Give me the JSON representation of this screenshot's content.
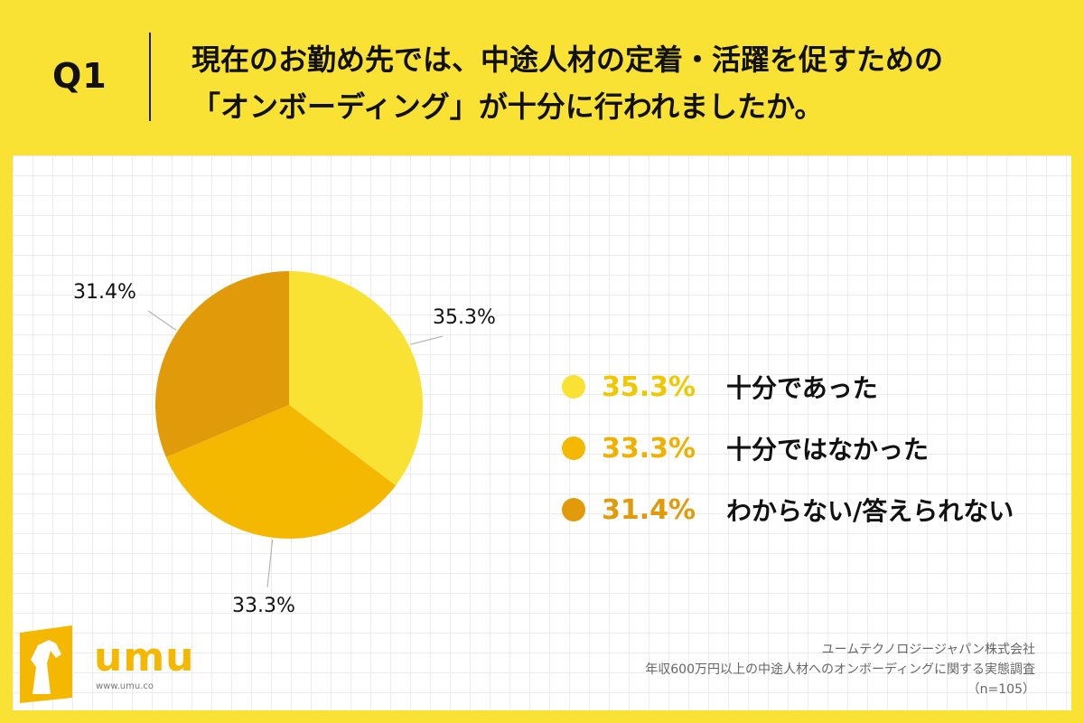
{
  "header": {
    "question_id": "Q1",
    "question_line1": "現在のお勤め先では、中途人材の定着・活躍を促すための",
    "question_line2": "「オンボーディング」が十分に行われましたか。"
  },
  "chart_data": {
    "type": "pie",
    "categories": [
      "十分であった",
      "十分ではなかった",
      "わからない/答えられない"
    ],
    "values": [
      35.3,
      33.3,
      31.4
    ],
    "value_labels": [
      "35.3%",
      "33.3%",
      "31.4%"
    ],
    "colors": [
      "#f9e234",
      "#f5b800",
      "#e19b0a"
    ],
    "start_angle_deg": 0,
    "direction": "clockwise",
    "legend_placement": "right"
  },
  "legend": {
    "items": [
      {
        "pct": "35.3%",
        "label": "十分であった",
        "color": "#f9e234",
        "text_color": "#f0c800"
      },
      {
        "pct": "33.3%",
        "label": "十分ではなかった",
        "color": "#f5b800",
        "text_color": "#f0b000"
      },
      {
        "pct": "31.4%",
        "label": "わからない/答えられない",
        "color": "#e19b0a",
        "text_color": "#e19b0a"
      }
    ]
  },
  "logo": {
    "name": "umu",
    "url": "www.umu.co"
  },
  "source": {
    "company": "ユームテクノロジージャパン株式会社",
    "survey": "年収600万円以上の中途人材へのオンボーディングに関する実態調査",
    "sample": "（n=105）"
  }
}
